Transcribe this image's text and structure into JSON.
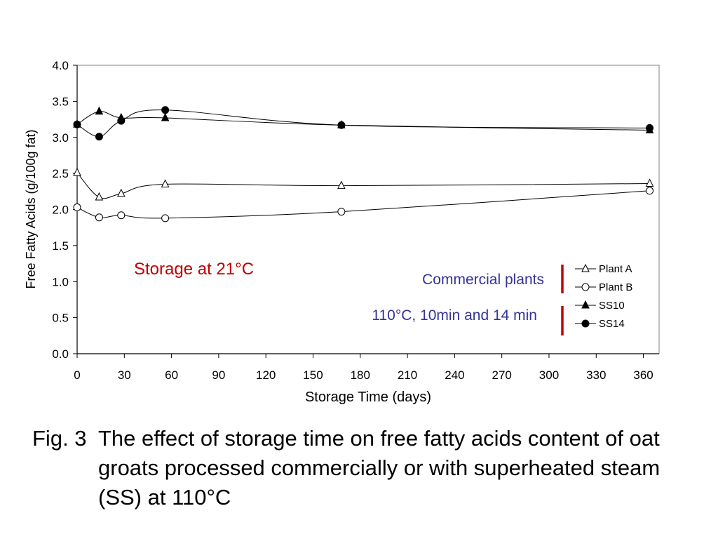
{
  "chart_data": {
    "type": "line",
    "xlabel": "Storage Time (days)",
    "ylabel": "Free Fatty Acids (g/100g fat)",
    "xlim": [
      0,
      370
    ],
    "ylim": [
      0,
      4.0
    ],
    "x_ticks": [
      "0",
      "30",
      "60",
      "90",
      "120",
      "150",
      "180",
      "210",
      "240",
      "270",
      "300",
      "330",
      "360"
    ],
    "y_ticks": [
      "0.0",
      "0.5",
      "1.0",
      "1.5",
      "2.0",
      "2.5",
      "3.0",
      "3.5",
      "4.0"
    ],
    "x_tick_values": [
      0,
      30,
      60,
      90,
      120,
      150,
      180,
      210,
      240,
      270,
      300,
      330,
      360
    ],
    "y_tick_values": [
      0,
      0.5,
      1.0,
      1.5,
      2.0,
      2.5,
      3.0,
      3.5,
      4.0
    ],
    "grid": false,
    "legend_position": "right",
    "series": [
      {
        "name": "Plant A",
        "marker": "triangle-open",
        "x": [
          0,
          14,
          28,
          56,
          168,
          364
        ],
        "y": [
          2.51,
          2.17,
          2.22,
          2.35,
          2.33,
          2.36
        ]
      },
      {
        "name": "Plant B",
        "marker": "circle-open",
        "x": [
          0,
          14,
          28,
          56,
          168,
          364
        ],
        "y": [
          2.03,
          1.89,
          1.92,
          1.88,
          1.97,
          2.26
        ]
      },
      {
        "name": "SS10",
        "marker": "triangle-filled",
        "x": [
          0,
          14,
          28,
          56,
          168,
          364
        ],
        "y": [
          3.18,
          3.36,
          3.27,
          3.27,
          3.17,
          3.1
        ]
      },
      {
        "name": "SS14",
        "marker": "circle-filled",
        "x": [
          0,
          14,
          28,
          56,
          168,
          364
        ],
        "y": [
          3.18,
          3.01,
          3.23,
          3.38,
          3.17,
          3.13
        ]
      }
    ],
    "annotations": {
      "storage": "Storage at 21°C",
      "commercial": "Commercial plants",
      "steam": "110°C, 10min and 14 min"
    }
  },
  "colors": {
    "annotation_red": "#c00000",
    "annotation_blue": "#333399",
    "bracket_red": "#c00000"
  },
  "caption": {
    "number": "Fig. 3",
    "text": "The effect of storage time on free fatty acids content of oat groats processed commercially or with superheated steam (SS) at 110°C"
  }
}
